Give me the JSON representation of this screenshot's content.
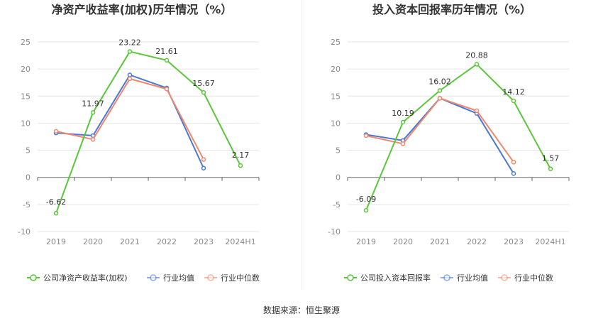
{
  "colors": {
    "company": "#5ac73a",
    "industry_avg": "#4a78d6",
    "industry_median": "#f0896b",
    "grid": "#e6e6e6",
    "axis": "#666666"
  },
  "source_label": "数据来源：恒生聚源",
  "chart_data": [
    {
      "type": "line",
      "title": "净资产收益率(加权)历年情况（%）",
      "categories": [
        "2019",
        "2020",
        "2021",
        "2022",
        "2023",
        "2024H1"
      ],
      "ylim": [
        -10,
        25
      ],
      "yticks": [
        25,
        20,
        15,
        10,
        5,
        0,
        -5,
        -10
      ],
      "grid": true,
      "legend_position": "bottom",
      "series": [
        {
          "name": "公司净资产收益率(加权)",
          "key": "company",
          "values": [
            -6.62,
            11.97,
            23.22,
            21.61,
            15.67,
            2.17
          ],
          "labels": [
            "-6.62",
            "11.97",
            "23.22",
            "21.61",
            "15.67",
            "2.17"
          ]
        },
        {
          "name": "行业均值",
          "key": "industry_avg",
          "values": [
            8.2,
            7.7,
            18.9,
            16.5,
            1.7,
            null
          ]
        },
        {
          "name": "行业中位数",
          "key": "industry_median",
          "values": [
            8.5,
            7.0,
            18.2,
            16.3,
            3.3,
            null
          ]
        }
      ]
    },
    {
      "type": "line",
      "title": "投入资本回报率历年情况（%）",
      "categories": [
        "2019",
        "2020",
        "2021",
        "2022",
        "2023",
        "2024H1"
      ],
      "ylim": [
        -10,
        25
      ],
      "yticks": [
        25,
        20,
        15,
        10,
        5,
        0,
        -5,
        -10
      ],
      "grid": true,
      "legend_position": "bottom",
      "series": [
        {
          "name": "公司投入资本回报率",
          "key": "company",
          "values": [
            -6.09,
            10.19,
            16.02,
            20.88,
            14.12,
            1.57
          ],
          "labels": [
            "-6.09",
            "10.19",
            "16.02",
            "20.88",
            "14.12",
            "1.57"
          ]
        },
        {
          "name": "行业均值",
          "key": "industry_avg",
          "values": [
            7.9,
            6.8,
            14.6,
            11.8,
            0.7,
            null
          ]
        },
        {
          "name": "行业中位数",
          "key": "industry_median",
          "values": [
            7.7,
            6.2,
            14.6,
            12.3,
            2.8,
            null
          ]
        }
      ]
    }
  ]
}
